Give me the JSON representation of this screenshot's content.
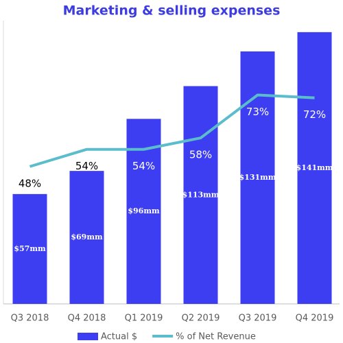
{
  "chart_data": {
    "type": "bar_line",
    "title": "Marketing & selling expenses",
    "categories": [
      "Q3 2018",
      "Q4 2018",
      "Q1 2019",
      "Q2 2019",
      "Q3 2019",
      "Q4 2019"
    ],
    "series": [
      {
        "name": "Actual $",
        "type": "bar",
        "color": "#3d3df2",
        "values": [
          57,
          69,
          96,
          113,
          131,
          141
        ],
        "value_labels": [
          "$57mm",
          "$69mm",
          "$96mm",
          "$113mm",
          "$131mm",
          "$141mm"
        ]
      },
      {
        "name": "% of Net Revenue",
        "type": "line",
        "axis": "y2",
        "color": "#5bbdcc",
        "values": [
          48,
          54,
          54,
          58,
          73,
          72
        ],
        "value_labels": [
          "48%",
          "54%",
          "54%",
          "58%",
          "73%",
          "72%"
        ]
      }
    ],
    "ylim": [
      0,
      147
    ],
    "y2lim": [
      0,
      99
    ],
    "legend": "bottom"
  }
}
